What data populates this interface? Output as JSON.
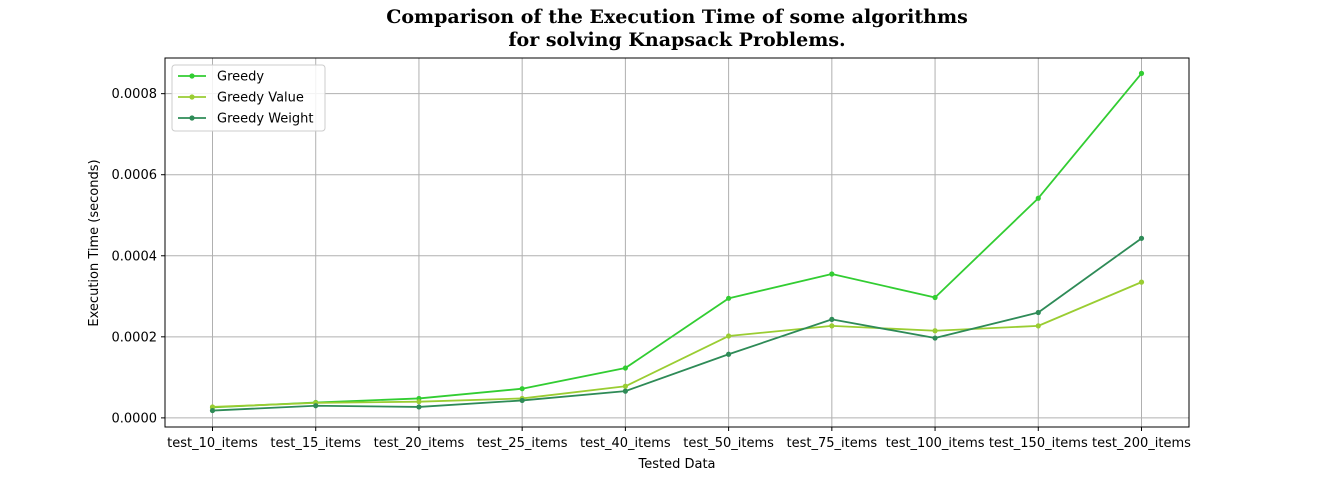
{
  "chart_data": {
    "type": "line",
    "title": [
      "Comparison of the Execution Time of some algorithms",
      "for solving Knapsack Problems."
    ],
    "xlabel": "Tested Data",
    "ylabel": "Execution Time (seconds)",
    "categories": [
      "test_10_items",
      "test_15_items",
      "test_20_items",
      "test_25_items",
      "test_40_items",
      "test_50_items",
      "test_75_items",
      "test_100_items",
      "test_150_items",
      "test_200_items"
    ],
    "ylim": [
      -2.25e-05,
      0.000888
    ],
    "yticks": [
      0,
      0.0002,
      0.0004,
      0.0006,
      0.0008
    ],
    "ytick_labels": [
      "0.0000",
      "0.0002",
      "0.0004",
      "0.0006",
      "0.0008"
    ],
    "grid": true,
    "legend_position": "top-left",
    "series": [
      {
        "name": "Greedy",
        "color": "#32cd32",
        "values": [
          2.6e-05,
          3.8e-05,
          4.8e-05,
          7.2e-05,
          0.000123,
          0.000295,
          0.000355,
          0.000297,
          0.000542,
          0.00085
        ]
      },
      {
        "name": "Greedy Value",
        "color": "#9acd32",
        "values": [
          2.7e-05,
          3.7e-05,
          4e-05,
          4.8e-05,
          7.8e-05,
          0.000202,
          0.000227,
          0.000215,
          0.000227,
          0.000335
        ]
      },
      {
        "name": "Greedy Weight",
        "color": "#2e8b57",
        "values": [
          1.8e-05,
          3e-05,
          2.7e-05,
          4.3e-05,
          6.6e-05,
          0.000157,
          0.000243,
          0.000197,
          0.00026,
          0.000443
        ]
      }
    ]
  }
}
